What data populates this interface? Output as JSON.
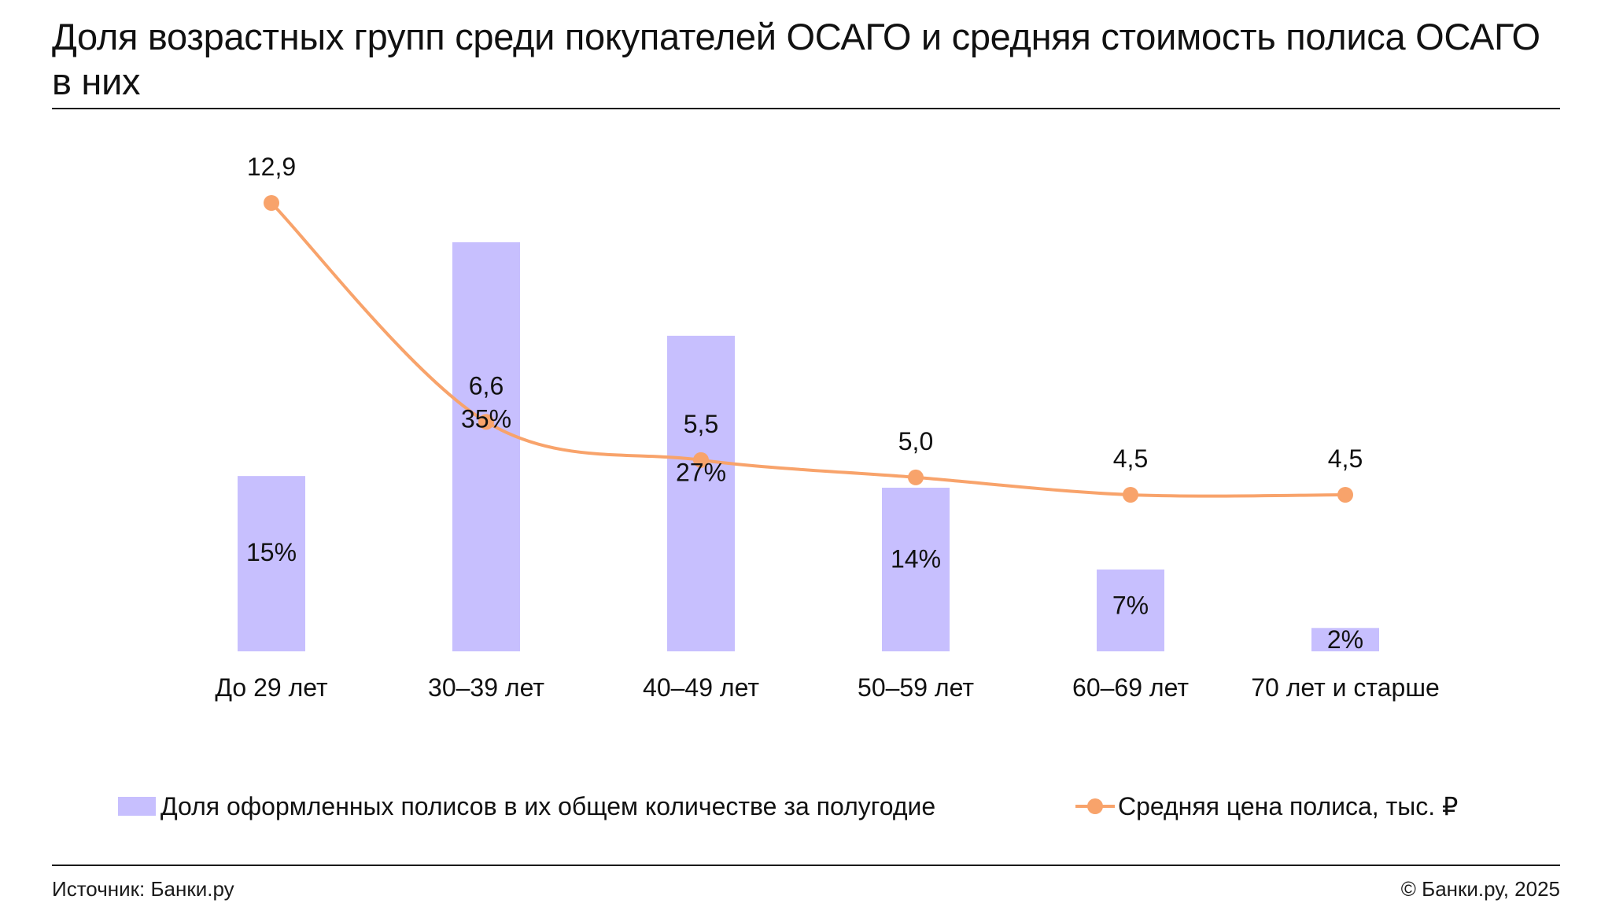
{
  "title": "Доля возрастных групп среди покупателей ОСАГО и средняя стоимость полиса ОСАГО в них",
  "footer": {
    "source": "Источник: Банки.ру",
    "copyright": "© Банки.ру, 2025"
  },
  "chart_data": {
    "type": "bar",
    "categories": [
      "До 29 лет",
      "30–39 лет",
      "40–49 лет",
      "50–59 лет",
      "60–69 лет",
      "70 лет и старше"
    ],
    "series": [
      {
        "name": "Доля оформленных полисов в их общем количестве за полугодие",
        "type": "bar",
        "values": [
          15,
          35,
          27,
          14,
          7,
          2
        ],
        "labels": [
          "15%",
          "35%",
          "27%",
          "14%",
          "7%",
          "2%"
        ],
        "color": "#c7bffe"
      },
      {
        "name": "Средняя цена полиса, тыс. ₽",
        "type": "line",
        "values": [
          12.9,
          6.6,
          5.5,
          5.0,
          4.5,
          4.5
        ],
        "labels": [
          "12,9",
          "6,6",
          "5,5",
          "5,0",
          "4,5",
          "4,5"
        ],
        "color": "#f8a36b"
      }
    ],
    "grid": false,
    "legend_position": "bottom",
    "xlabel": "",
    "ylabel": ""
  }
}
